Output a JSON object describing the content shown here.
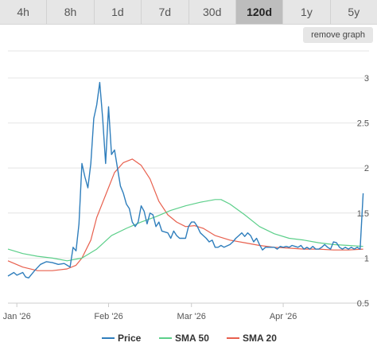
{
  "range_tabs": [
    {
      "label": "4h",
      "active": false
    },
    {
      "label": "8h",
      "active": false
    },
    {
      "label": "1d",
      "active": false
    },
    {
      "label": "7d",
      "active": false
    },
    {
      "label": "30d",
      "active": false
    },
    {
      "label": "120d",
      "active": true
    },
    {
      "label": "1y",
      "active": false
    },
    {
      "label": "5y",
      "active": false
    }
  ],
  "remove_graph_label": "remove graph",
  "chart_data": {
    "type": "line",
    "x_ticks": [
      "Jan '26",
      "Feb '26",
      "Mar '26",
      "Apr '26"
    ],
    "x_tick_days": [
      3,
      34,
      62,
      93
    ],
    "x_range": [
      0,
      122
    ],
    "ylim": [
      0.5,
      3.3
    ],
    "y_ticks": [
      0.5,
      1,
      1.5,
      2,
      2.5,
      3
    ],
    "y_tick_labels": [
      "0.5",
      "1",
      "1.5",
      "2",
      "2.5",
      "3"
    ],
    "grid": true,
    "legend_position": "bottom",
    "series": [
      {
        "name": "Price",
        "color": "#2f7ebc",
        "points": [
          [
            0,
            0.8
          ],
          [
            2,
            0.84
          ],
          [
            3,
            0.81
          ],
          [
            5,
            0.84
          ],
          [
            6,
            0.79
          ],
          [
            7,
            0.78
          ],
          [
            9,
            0.86
          ],
          [
            11,
            0.93
          ],
          [
            13,
            0.96
          ],
          [
            15,
            0.95
          ],
          [
            17,
            0.93
          ],
          [
            19,
            0.94
          ],
          [
            20,
            0.92
          ],
          [
            21,
            0.9
          ],
          [
            22,
            1.12
          ],
          [
            23,
            1.08
          ],
          [
            24,
            1.38
          ],
          [
            25,
            2.05
          ],
          [
            26,
            1.9
          ],
          [
            27,
            1.78
          ],
          [
            28,
            2.05
          ],
          [
            29,
            2.55
          ],
          [
            30,
            2.7
          ],
          [
            31,
            2.95
          ],
          [
            32,
            2.55
          ],
          [
            33,
            2.05
          ],
          [
            34,
            2.68
          ],
          [
            35,
            2.15
          ],
          [
            36,
            2.2
          ],
          [
            37,
            2.0
          ],
          [
            38,
            1.8
          ],
          [
            39,
            1.72
          ],
          [
            40,
            1.6
          ],
          [
            41,
            1.55
          ],
          [
            42,
            1.4
          ],
          [
            43,
            1.35
          ],
          [
            44,
            1.4
          ],
          [
            45,
            1.58
          ],
          [
            46,
            1.52
          ],
          [
            47,
            1.38
          ],
          [
            48,
            1.5
          ],
          [
            49,
            1.48
          ],
          [
            50,
            1.35
          ],
          [
            51,
            1.4
          ],
          [
            52,
            1.3
          ],
          [
            54,
            1.28
          ],
          [
            55,
            1.22
          ],
          [
            56,
            1.3
          ],
          [
            57,
            1.25
          ],
          [
            58,
            1.22
          ],
          [
            60,
            1.22
          ],
          [
            61,
            1.35
          ],
          [
            62,
            1.4
          ],
          [
            63,
            1.4
          ],
          [
            64,
            1.35
          ],
          [
            65,
            1.28
          ],
          [
            66,
            1.25
          ],
          [
            67,
            1.22
          ],
          [
            68,
            1.18
          ],
          [
            69,
            1.2
          ],
          [
            70,
            1.12
          ],
          [
            71,
            1.12
          ],
          [
            72,
            1.14
          ],
          [
            73,
            1.12
          ],
          [
            75,
            1.15
          ],
          [
            76,
            1.18
          ],
          [
            77,
            1.22
          ],
          [
            78,
            1.25
          ],
          [
            79,
            1.28
          ],
          [
            80,
            1.24
          ],
          [
            81,
            1.28
          ],
          [
            82,
            1.25
          ],
          [
            83,
            1.18
          ],
          [
            84,
            1.22
          ],
          [
            85,
            1.15
          ],
          [
            86,
            1.09
          ],
          [
            87,
            1.12
          ],
          [
            88,
            1.12
          ],
          [
            90,
            1.12
          ],
          [
            91,
            1.1
          ],
          [
            92,
            1.13
          ],
          [
            93,
            1.12
          ],
          [
            94,
            1.13
          ],
          [
            95,
            1.12
          ],
          [
            96,
            1.14
          ],
          [
            97,
            1.13
          ],
          [
            98,
            1.12
          ],
          [
            99,
            1.14
          ],
          [
            100,
            1.1
          ],
          [
            101,
            1.12
          ],
          [
            102,
            1.1
          ],
          [
            103,
            1.13
          ],
          [
            104,
            1.1
          ],
          [
            105,
            1.1
          ],
          [
            106,
            1.12
          ],
          [
            107,
            1.15
          ],
          [
            108,
            1.12
          ],
          [
            109,
            1.1
          ],
          [
            110,
            1.18
          ],
          [
            111,
            1.17
          ],
          [
            112,
            1.12
          ],
          [
            113,
            1.1
          ],
          [
            114,
            1.12
          ],
          [
            115,
            1.1
          ],
          [
            116,
            1.12
          ],
          [
            117,
            1.1
          ],
          [
            118,
            1.12
          ],
          [
            119,
            1.1
          ],
          [
            120,
            1.72
          ]
        ]
      },
      {
        "name": "SMA 50",
        "color": "#5ccf8a",
        "points": [
          [
            0,
            1.1
          ],
          [
            5,
            1.05
          ],
          [
            10,
            1.02
          ],
          [
            15,
            1.0
          ],
          [
            20,
            0.97
          ],
          [
            25,
            1.0
          ],
          [
            30,
            1.1
          ],
          [
            35,
            1.25
          ],
          [
            40,
            1.33
          ],
          [
            45,
            1.4
          ],
          [
            50,
            1.46
          ],
          [
            55,
            1.53
          ],
          [
            60,
            1.58
          ],
          [
            65,
            1.62
          ],
          [
            70,
            1.65
          ],
          [
            72,
            1.65
          ],
          [
            75,
            1.6
          ],
          [
            80,
            1.48
          ],
          [
            85,
            1.35
          ],
          [
            90,
            1.27
          ],
          [
            95,
            1.22
          ],
          [
            100,
            1.2
          ],
          [
            105,
            1.17
          ],
          [
            110,
            1.15
          ],
          [
            115,
            1.14
          ],
          [
            120,
            1.13
          ]
        ]
      },
      {
        "name": "SMA 20",
        "color": "#e8604e",
        "points": [
          [
            0,
            0.97
          ],
          [
            5,
            0.9
          ],
          [
            10,
            0.86
          ],
          [
            15,
            0.86
          ],
          [
            20,
            0.88
          ],
          [
            23,
            0.92
          ],
          [
            25,
            1.0
          ],
          [
            28,
            1.2
          ],
          [
            30,
            1.45
          ],
          [
            33,
            1.7
          ],
          [
            36,
            1.95
          ],
          [
            39,
            2.06
          ],
          [
            42,
            2.1
          ],
          [
            45,
            2.03
          ],
          [
            48,
            1.88
          ],
          [
            51,
            1.63
          ],
          [
            54,
            1.48
          ],
          [
            57,
            1.4
          ],
          [
            60,
            1.35
          ],
          [
            63,
            1.36
          ],
          [
            66,
            1.33
          ],
          [
            70,
            1.25
          ],
          [
            75,
            1.2
          ],
          [
            80,
            1.17
          ],
          [
            85,
            1.14
          ],
          [
            90,
            1.12
          ],
          [
            95,
            1.11
          ],
          [
            100,
            1.1
          ],
          [
            105,
            1.1
          ],
          [
            110,
            1.09
          ],
          [
            115,
            1.09
          ],
          [
            120,
            1.1
          ]
        ]
      }
    ]
  }
}
